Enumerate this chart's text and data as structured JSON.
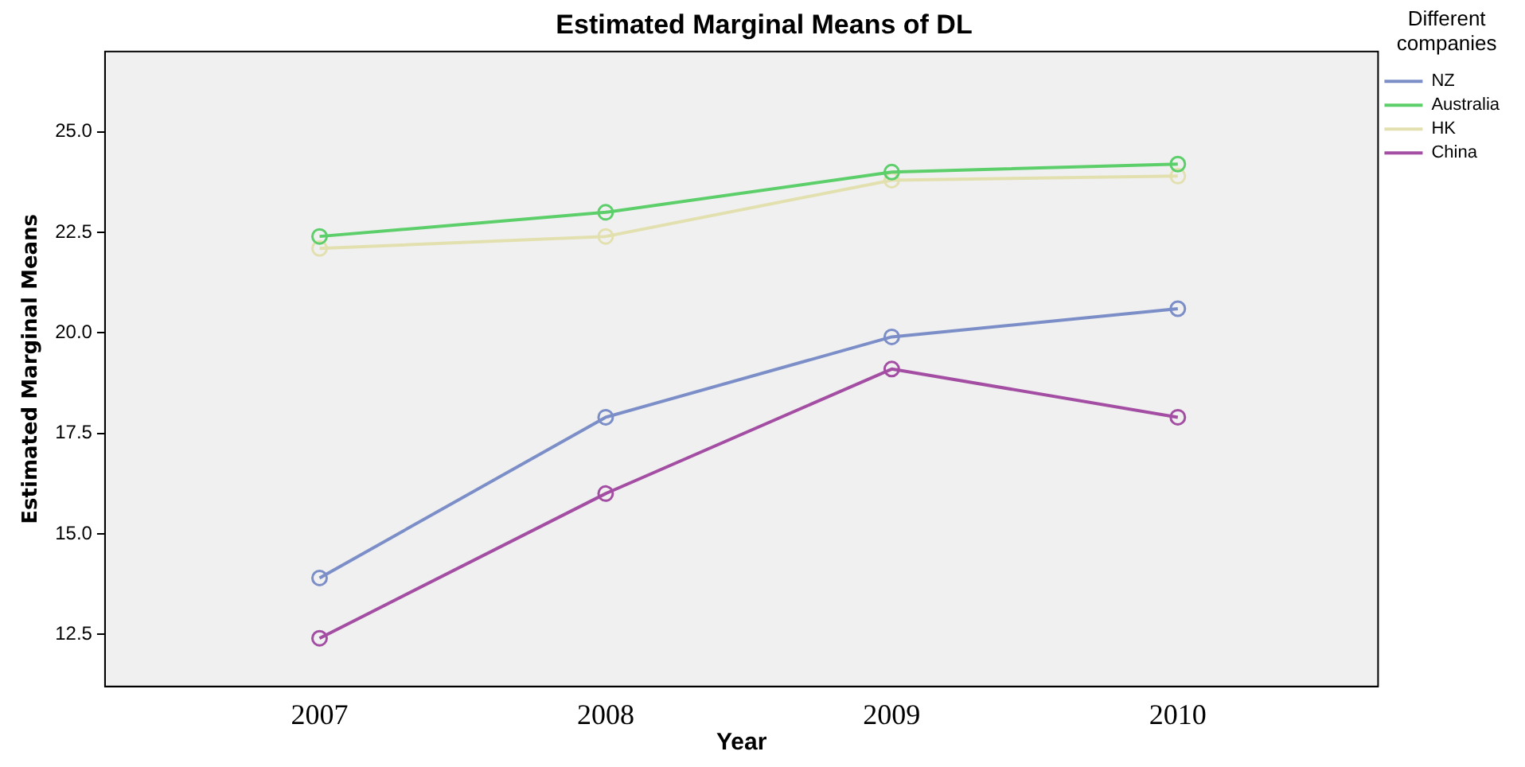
{
  "chart_data": {
    "type": "line",
    "title": "Estimated Marginal Means of DL",
    "xlabel": "Year",
    "ylabel": "Estimated Marginal Means",
    "legend_title": "Different companies",
    "legend": "right",
    "marker": "circle",
    "grid": false,
    "x": [
      2007,
      2008,
      2009,
      2010
    ],
    "xlim": [
      2006.25,
      2010.7
    ],
    "xticks": [
      2007,
      2008,
      2009,
      2010
    ],
    "ylim": [
      11.2,
      27.0
    ],
    "yticks": [
      {
        "value": 12.5,
        "label": "12.5"
      },
      {
        "value": 15,
        "label": "15.0"
      },
      {
        "value": 17.5,
        "label": "17.5"
      },
      {
        "value": 20,
        "label": "20.0"
      },
      {
        "value": 22.5,
        "label": "22.5"
      },
      {
        "value": 25,
        "label": "25.0"
      }
    ],
    "series": [
      {
        "name": "NZ",
        "color": "#7b8ec8",
        "values": [
          13.9,
          17.9,
          19.9,
          20.6
        ]
      },
      {
        "name": "Australia",
        "color": "#5ccf6a",
        "values": [
          22.4,
          23.0,
          24.0,
          24.2
        ]
      },
      {
        "name": "HK",
        "color": "#e3e0b0",
        "values": [
          22.1,
          22.4,
          23.8,
          23.9
        ]
      },
      {
        "name": "China",
        "color": "#a34ea3",
        "values": [
          12.4,
          16.0,
          19.1,
          17.9
        ]
      }
    ]
  }
}
